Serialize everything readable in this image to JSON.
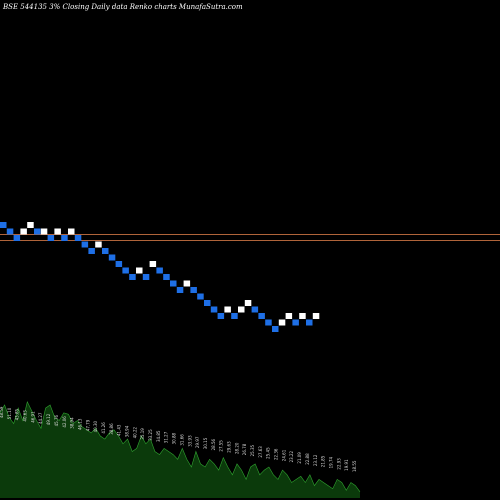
{
  "header": {
    "title": "BSE 544135 3% Closing Daily data Renko charts MunafaSutra.com"
  },
  "colors": {
    "background": "#000000",
    "up_brick": "#ffffff",
    "down_brick": "#1e6fe6",
    "reference_line": "#b0643a",
    "volume_fill": "#0b3a0b",
    "volume_line": "#2fa32f"
  },
  "chart_data": {
    "type": "renko",
    "title": "BSE 544135 3% Closing Daily data Renko charts MunafaSutra.com",
    "brick_size_pct": 3,
    "reference_levels": [
      0,
      -2
    ],
    "bricks": [
      {
        "dir": "down",
        "level": 0
      },
      {
        "dir": "down",
        "level": -1
      },
      {
        "dir": "down",
        "level": -2
      },
      {
        "dir": "up",
        "level": -1
      },
      {
        "dir": "up",
        "level": 0
      },
      {
        "dir": "down",
        "level": -1
      },
      {
        "dir": "up",
        "level": -1
      },
      {
        "dir": "down",
        "level": -2
      },
      {
        "dir": "up",
        "level": -1
      },
      {
        "dir": "down",
        "level": -2
      },
      {
        "dir": "up",
        "level": -1
      },
      {
        "dir": "down",
        "level": -2
      },
      {
        "dir": "down",
        "level": -3
      },
      {
        "dir": "down",
        "level": -4
      },
      {
        "dir": "up",
        "level": -3
      },
      {
        "dir": "down",
        "level": -4
      },
      {
        "dir": "down",
        "level": -5
      },
      {
        "dir": "down",
        "level": -6
      },
      {
        "dir": "down",
        "level": -7
      },
      {
        "dir": "down",
        "level": -8
      },
      {
        "dir": "up",
        "level": -7
      },
      {
        "dir": "down",
        "level": -8
      },
      {
        "dir": "up",
        "level": -6
      },
      {
        "dir": "down",
        "level": -7
      },
      {
        "dir": "down",
        "level": -8
      },
      {
        "dir": "down",
        "level": -9
      },
      {
        "dir": "down",
        "level": -10
      },
      {
        "dir": "up",
        "level": -9
      },
      {
        "dir": "down",
        "level": -10
      },
      {
        "dir": "down",
        "level": -11
      },
      {
        "dir": "down",
        "level": -12
      },
      {
        "dir": "down",
        "level": -13
      },
      {
        "dir": "down",
        "level": -14
      },
      {
        "dir": "up",
        "level": -13
      },
      {
        "dir": "down",
        "level": -14
      },
      {
        "dir": "up",
        "level": -13
      },
      {
        "dir": "up",
        "level": -12
      },
      {
        "dir": "down",
        "level": -13
      },
      {
        "dir": "down",
        "level": -14
      },
      {
        "dir": "down",
        "level": -15
      },
      {
        "dir": "down",
        "level": -16
      },
      {
        "dir": "up",
        "level": -15
      },
      {
        "dir": "up",
        "level": -14
      },
      {
        "dir": "down",
        "level": -15
      },
      {
        "dir": "up",
        "level": -14
      },
      {
        "dir": "down",
        "level": -15
      },
      {
        "dir": "up",
        "level": -14
      }
    ],
    "volume": [
      55,
      60,
      52,
      48,
      58,
      50,
      62,
      56,
      50,
      45,
      58,
      60,
      52,
      50,
      55,
      54,
      48,
      50,
      46,
      44,
      42,
      45,
      40,
      38,
      42,
      44,
      40,
      35,
      38,
      30,
      32,
      40,
      35,
      38,
      30,
      28,
      32,
      30,
      28,
      25,
      32,
      25,
      20,
      30,
      22,
      20,
      25,
      22,
      18,
      26,
      20,
      15,
      22,
      18,
      12,
      20,
      22,
      15,
      18,
      20,
      15,
      12,
      18,
      15,
      10,
      12,
      14,
      10,
      15,
      8,
      12,
      10,
      8,
      6,
      12,
      10,
      5,
      10,
      8,
      4
    ],
    "volume_labels": [
      "48.59",
      "51.10",
      "43.85",
      "40.63",
      "46.91",
      "44.27",
      "49.12",
      "45.76",
      "42.06",
      "38.94",
      "46.13",
      "47.79",
      "40.30",
      "41.26",
      "38.86",
      "41.43",
      "38.94",
      "40.22",
      "35.19",
      "33.25",
      "34.85",
      "31.27",
      "30.88",
      "31.66",
      "33.93",
      "29.97",
      "30.15",
      "28.56",
      "27.55",
      "29.63",
      "28.20",
      "26.78",
      "25.35",
      "27.63",
      "25.45",
      "22.36",
      "24.61",
      "23.22",
      "21.09",
      "22.88",
      "23.12",
      "21.85",
      "19.74",
      "22.93",
      "19.91",
      "18.55"
    ]
  }
}
